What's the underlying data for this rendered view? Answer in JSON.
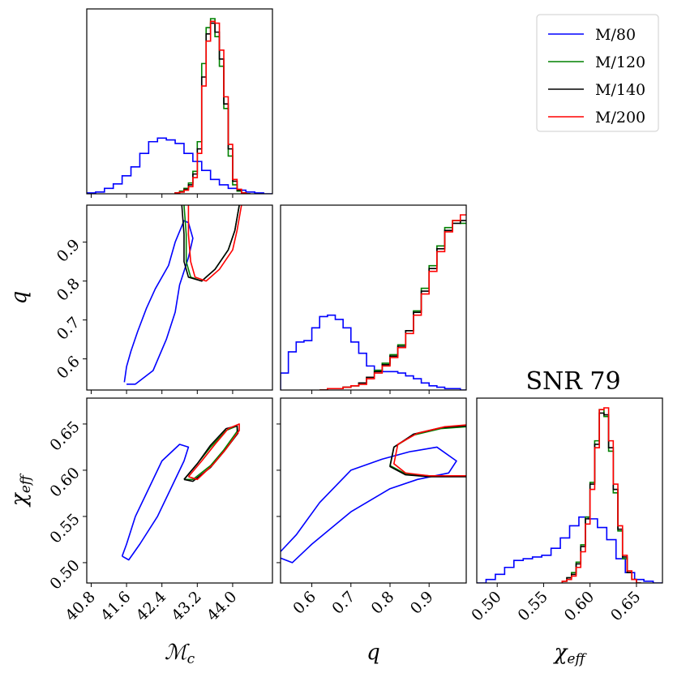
{
  "chart_data": {
    "type": "corner",
    "title": "SNR 79",
    "parameters": [
      {
        "key": "mc",
        "label": "ℳ",
        "label_sub": "c",
        "range": [
          40.7,
          44.9
        ],
        "ticks": [
          40.8,
          41.6,
          42.4,
          43.2,
          44.0
        ],
        "tick_labels": [
          "40.8",
          "41.6",
          "42.4",
          "43.2",
          "44.0"
        ]
      },
      {
        "key": "q",
        "label": "q",
        "label_sub": "",
        "range": [
          0.52,
          0.995
        ],
        "ticks": [
          0.6,
          0.7,
          0.8,
          0.9
        ],
        "tick_labels": [
          "0.6",
          "0.7",
          "0.8",
          "0.9"
        ]
      },
      {
        "key": "chi",
        "label": "χ",
        "label_sub": "eff",
        "range": [
          0.478,
          0.678
        ],
        "ticks": [
          0.5,
          0.55,
          0.6,
          0.65
        ],
        "tick_labels": [
          "0.50",
          "0.55",
          "0.60",
          "0.65"
        ]
      }
    ],
    "series": [
      {
        "name": "M/80",
        "color": "#0000ff",
        "hist_mc": {
          "edges_start": 40.7,
          "bin_width": 0.2,
          "counts": [
            1,
            2,
            6,
            11,
            20,
            30,
            45,
            58,
            62,
            60,
            56,
            45,
            36,
            26,
            16,
            10,
            6,
            4,
            2,
            1,
            0
          ]
        },
        "hist_q": {
          "edges_start": 0.52,
          "bin_width": 0.02,
          "counts": [
            12,
            27,
            34,
            35,
            44,
            52,
            53,
            50,
            44,
            34,
            26,
            17,
            14,
            13,
            13,
            12,
            10,
            8,
            5,
            3,
            2,
            1,
            1,
            0
          ]
        },
        "hist_chi": {
          "edges_start": 0.478,
          "bin_width": 0.01,
          "counts": [
            0,
            2,
            5,
            9,
            13,
            14,
            15,
            16,
            20,
            26,
            33,
            38,
            37,
            32,
            25,
            14,
            6,
            2,
            1,
            0
          ]
        },
        "contour_mc_q": [
          [
            41.55,
            0.54
          ],
          [
            41.6,
            0.58
          ],
          [
            41.7,
            0.62
          ],
          [
            41.85,
            0.67
          ],
          [
            42.05,
            0.73
          ],
          [
            42.25,
            0.78
          ],
          [
            42.55,
            0.84
          ],
          [
            42.7,
            0.9
          ],
          [
            42.9,
            0.955
          ],
          [
            43.0,
            0.95
          ],
          [
            43.1,
            0.91
          ],
          [
            43.0,
            0.86
          ],
          [
            42.8,
            0.79
          ],
          [
            42.7,
            0.72
          ],
          [
            42.5,
            0.65
          ],
          [
            42.2,
            0.57
          ],
          [
            41.8,
            0.535
          ],
          [
            41.6,
            0.535
          ]
        ],
        "contour_mc_chi": [
          [
            41.5,
            0.507
          ],
          [
            41.6,
            0.52
          ],
          [
            41.8,
            0.55
          ],
          [
            42.1,
            0.58
          ],
          [
            42.4,
            0.61
          ],
          [
            42.8,
            0.628
          ],
          [
            43.0,
            0.625
          ],
          [
            42.9,
            0.61
          ],
          [
            42.6,
            0.58
          ],
          [
            42.3,
            0.55
          ],
          [
            41.9,
            0.52
          ],
          [
            41.65,
            0.503
          ],
          [
            41.5,
            0.507
          ]
        ],
        "contour_q_chi": [
          [
            0.52,
            0.512
          ],
          [
            0.56,
            0.53
          ],
          [
            0.62,
            0.565
          ],
          [
            0.7,
            0.6
          ],
          [
            0.78,
            0.612
          ],
          [
            0.85,
            0.62
          ],
          [
            0.92,
            0.625
          ],
          [
            0.97,
            0.61
          ],
          [
            0.95,
            0.597
          ],
          [
            0.87,
            0.59
          ],
          [
            0.8,
            0.58
          ],
          [
            0.7,
            0.555
          ],
          [
            0.6,
            0.52
          ],
          [
            0.55,
            0.5
          ],
          [
            0.52,
            0.505
          ]
        ]
      },
      {
        "name": "M/120",
        "color": "#008000",
        "hist_mc": {
          "edges_start": 42.7,
          "bin_width": 0.1,
          "counts": [
            1,
            3,
            6,
            12,
            25,
            58,
            145,
            185,
            195,
            175,
            142,
            95,
            42,
            10,
            3,
            1,
            0
          ]
        },
        "hist_q": {
          "edges_start": 0.62,
          "bin_width": 0.02,
          "counts": [
            0,
            1,
            1,
            2,
            3,
            5,
            9,
            14,
            19,
            25,
            32,
            42,
            56,
            72,
            88,
            102,
            115,
            120,
            118,
            110
          ]
        },
        "hist_chi": {
          "edges_start": 0.57,
          "bin_width": 0.005,
          "counts": [
            1,
            3,
            6,
            12,
            22,
            38,
            58,
            82,
            100,
            96,
            76,
            52,
            30,
            14,
            6,
            2,
            0
          ]
        },
        "contour_mc_q": [
          [
            42.9,
            0.995
          ],
          [
            42.95,
            0.92
          ],
          [
            42.95,
            0.85
          ],
          [
            43.05,
            0.81
          ],
          [
            43.3,
            0.8
          ],
          [
            43.6,
            0.83
          ],
          [
            43.9,
            0.88
          ],
          [
            44.05,
            0.93
          ],
          [
            44.15,
            0.995
          ]
        ],
        "contour_mc_chi": [
          [
            42.9,
            0.59
          ],
          [
            43.2,
            0.607
          ],
          [
            43.5,
            0.625
          ],
          [
            43.85,
            0.643
          ],
          [
            44.1,
            0.648
          ],
          [
            44.1,
            0.642
          ],
          [
            43.8,
            0.622
          ],
          [
            43.5,
            0.605
          ],
          [
            43.1,
            0.59
          ],
          [
            42.9,
            0.59
          ]
        ],
        "contour_q_chi": [
          [
            0.995,
            0.594
          ],
          [
            0.9,
            0.594
          ],
          [
            0.84,
            0.596
          ],
          [
            0.8,
            0.605
          ],
          [
            0.81,
            0.625
          ],
          [
            0.86,
            0.638
          ],
          [
            0.93,
            0.645
          ],
          [
            0.995,
            0.647
          ]
        ]
      },
      {
        "name": "M/140",
        "color": "#000000",
        "hist_mc": {
          "edges_start": 42.7,
          "bin_width": 0.1,
          "counts": [
            1,
            2,
            5,
            10,
            22,
            50,
            130,
            178,
            190,
            180,
            150,
            100,
            50,
            14,
            4,
            1,
            0
          ]
        },
        "hist_q": {
          "edges_start": 0.62,
          "bin_width": 0.02,
          "counts": [
            0,
            1,
            1,
            2,
            3,
            5,
            9,
            13,
            18,
            24,
            31,
            42,
            55,
            70,
            86,
            100,
            113,
            118,
            120,
            112
          ]
        },
        "hist_chi": {
          "edges_start": 0.57,
          "bin_width": 0.005,
          "counts": [
            1,
            3,
            5,
            11,
            21,
            37,
            57,
            80,
            98,
            97,
            78,
            54,
            31,
            15,
            6,
            2,
            0
          ]
        },
        "contour_mc_q": [
          [
            42.85,
            0.995
          ],
          [
            42.9,
            0.92
          ],
          [
            42.9,
            0.85
          ],
          [
            43.0,
            0.81
          ],
          [
            43.3,
            0.8
          ],
          [
            43.6,
            0.83
          ],
          [
            43.9,
            0.88
          ],
          [
            44.05,
            0.93
          ],
          [
            44.15,
            0.995
          ]
        ],
        "contour_mc_chi": [
          [
            42.9,
            0.59
          ],
          [
            43.2,
            0.607
          ],
          [
            43.5,
            0.627
          ],
          [
            43.85,
            0.645
          ],
          [
            44.1,
            0.648
          ],
          [
            44.12,
            0.64
          ],
          [
            43.8,
            0.62
          ],
          [
            43.5,
            0.603
          ],
          [
            43.1,
            0.588
          ],
          [
            42.9,
            0.59
          ]
        ],
        "contour_q_chi": [
          [
            0.995,
            0.593
          ],
          [
            0.9,
            0.593
          ],
          [
            0.84,
            0.595
          ],
          [
            0.8,
            0.604
          ],
          [
            0.81,
            0.625
          ],
          [
            0.86,
            0.639
          ],
          [
            0.93,
            0.646
          ],
          [
            0.995,
            0.648
          ]
        ]
      },
      {
        "name": "M/200",
        "color": "#ff0000",
        "hist_mc": {
          "edges_start": 42.7,
          "bin_width": 0.1,
          "counts": [
            1,
            2,
            4,
            8,
            18,
            45,
            120,
            170,
            192,
            190,
            160,
            108,
            55,
            16,
            5,
            1,
            0
          ]
        },
        "hist_q": {
          "edges_start": 0.62,
          "bin_width": 0.02,
          "counts": [
            0,
            1,
            1,
            2,
            3,
            4,
            8,
            12,
            17,
            23,
            30,
            40,
            53,
            68,
            84,
            98,
            112,
            120,
            124,
            116
          ]
        },
        "hist_chi": {
          "edges_start": 0.57,
          "bin_width": 0.005,
          "counts": [
            1,
            2,
            4,
            9,
            18,
            34,
            54,
            78,
            100,
            101,
            82,
            57,
            33,
            16,
            7,
            2,
            0
          ]
        },
        "contour_mc_q": [
          [
            43.0,
            0.995
          ],
          [
            43.0,
            0.92
          ],
          [
            43.05,
            0.85
          ],
          [
            43.15,
            0.81
          ],
          [
            43.4,
            0.8
          ],
          [
            43.7,
            0.83
          ],
          [
            44.0,
            0.88
          ],
          [
            44.1,
            0.93
          ],
          [
            44.2,
            0.995
          ]
        ],
        "contour_mc_chi": [
          [
            43.0,
            0.593
          ],
          [
            43.3,
            0.61
          ],
          [
            43.6,
            0.628
          ],
          [
            43.9,
            0.645
          ],
          [
            44.15,
            0.65
          ],
          [
            44.15,
            0.643
          ],
          [
            43.85,
            0.623
          ],
          [
            43.55,
            0.606
          ],
          [
            43.2,
            0.59
          ],
          [
            43.0,
            0.593
          ]
        ],
        "contour_q_chi": [
          [
            0.995,
            0.594
          ],
          [
            0.9,
            0.594
          ],
          [
            0.84,
            0.597
          ],
          [
            0.81,
            0.607
          ],
          [
            0.82,
            0.628
          ],
          [
            0.87,
            0.64
          ],
          [
            0.94,
            0.647
          ],
          [
            0.995,
            0.649
          ]
        ]
      }
    ]
  }
}
